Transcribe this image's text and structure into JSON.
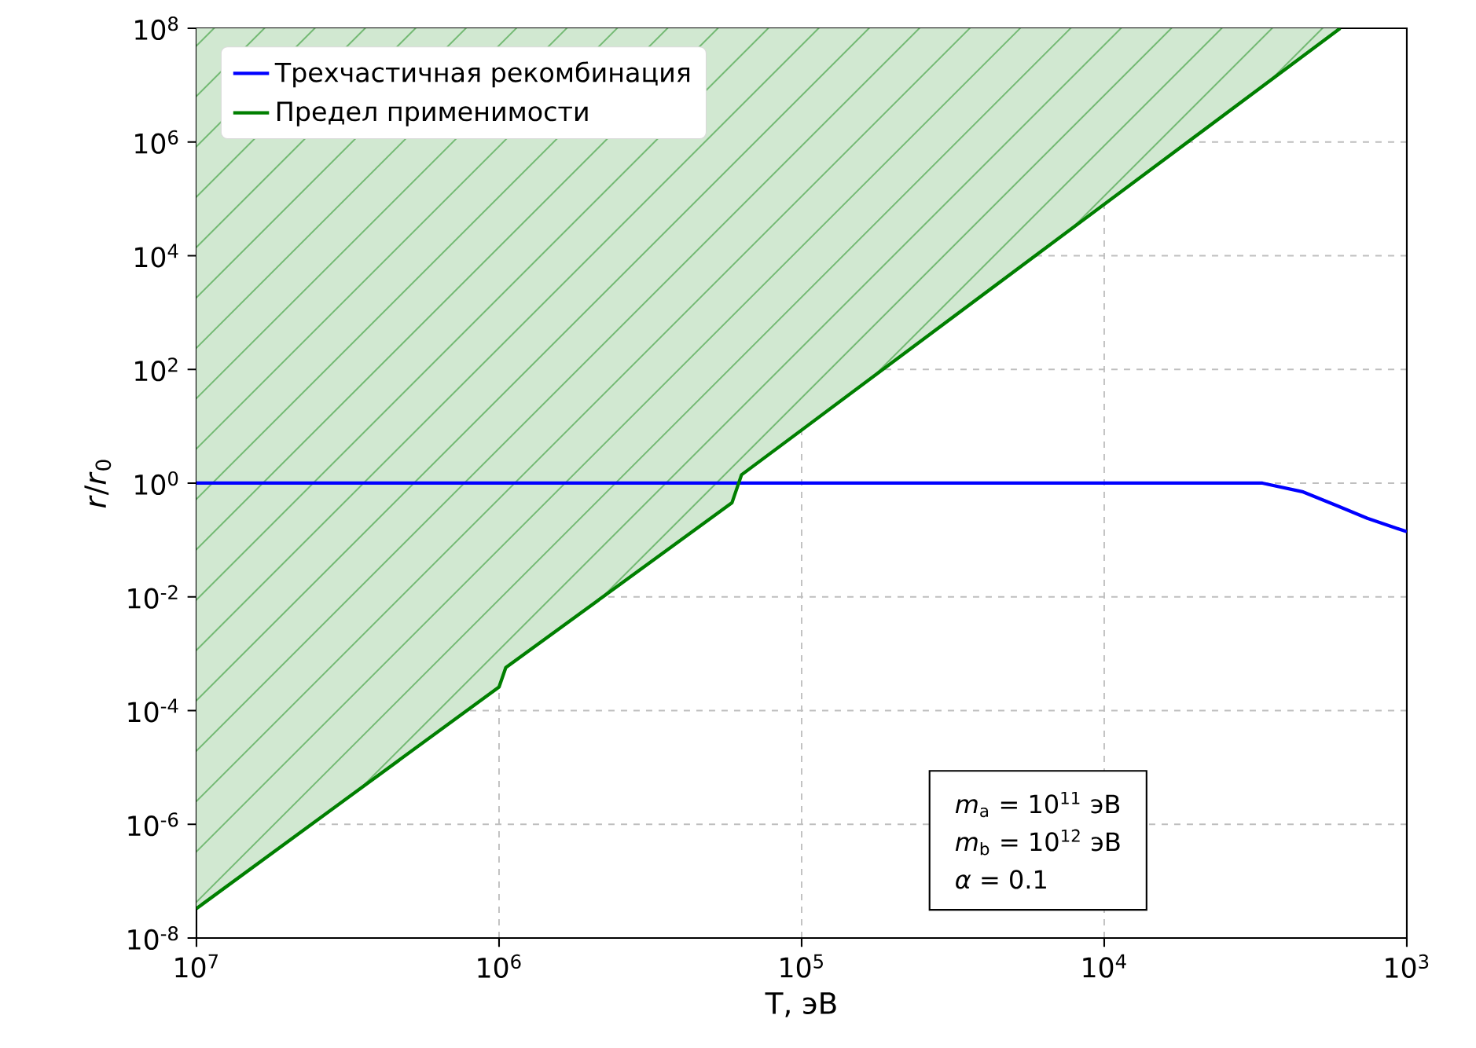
{
  "chart_data": {
    "type": "line",
    "xlabel": "T, эВ",
    "ylabel": "*r*/*r*$_{0}$",
    "xlim": [
      10000000,
      1000
    ],
    "ylim": [
      1e-08,
      100000000.0
    ],
    "log": "xy",
    "grid": true,
    "legend": "top left",
    "xticks": [
      {
        "value": 10000000,
        "label": "10$^{7}$"
      },
      {
        "value": 1000000,
        "label": "10$^{6}$"
      },
      {
        "value": 100000,
        "label": "10$^{5}$"
      },
      {
        "value": 10000,
        "label": "10$^{4}$"
      },
      {
        "value": 1000,
        "label": "10$^{3}$"
      }
    ],
    "yticks": [
      {
        "value": 1e-08,
        "label": "10$^{-8}$"
      },
      {
        "value": 1e-06,
        "label": "10$^{-6}$"
      },
      {
        "value": 0.0001,
        "label": "10$^{-4}$"
      },
      {
        "value": 0.01,
        "label": "10$^{-2}$"
      },
      {
        "value": 1,
        "label": "10$^{0}$"
      },
      {
        "value": 100,
        "label": "10$^{2}$"
      },
      {
        "value": 10000,
        "label": "10$^{4}$"
      },
      {
        "value": 1000000,
        "label": "10$^{6}$"
      },
      {
        "value": 100000000.0,
        "label": "10$^{8}$"
      }
    ],
    "series": [
      {
        "name": "Трехчастичная рекомбинация",
        "type": "line",
        "color": "#0000ff",
        "x": [
          10000000,
          3000,
          2200,
          1700,
          1350,
          1000
        ],
        "values": [
          1,
          1,
          0.7,
          0.4,
          0.24,
          0.14
        ]
      },
      {
        "name": "Предел применимости",
        "type": "line",
        "color": "#007f00",
        "x": [
          10000000,
          1000000,
          950000,
          170000,
          158000,
          1660
        ],
        "values": [
          3.3e-08,
          0.00026,
          0.00057,
          0.45,
          1.4,
          100000000.0
        ],
        "lower": [
          3.3e-08,
          0.00026,
          0.00057,
          0.45,
          1.4,
          100000000.0
        ],
        "upper": [
          100000000.0,
          100000000.0,
          100000000.0,
          100000000.0,
          100000000.0,
          100000000.0
        ]
      }
    ],
    "annotations": [
      "*m*$_{a}$ = 10$^{11}$ эВ",
      "*m*$_{b}$ = 10$^{12}$ эВ",
      "*α* = 0.1"
    ]
  }
}
